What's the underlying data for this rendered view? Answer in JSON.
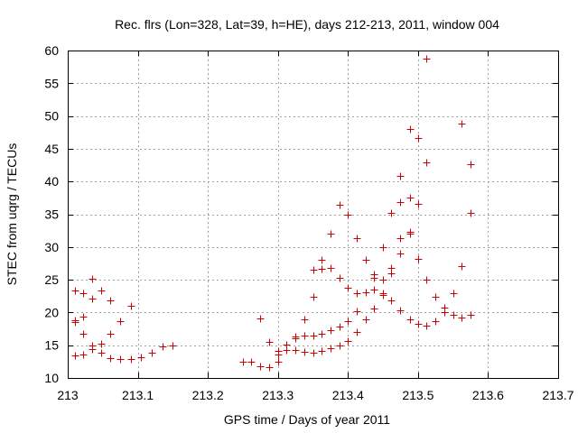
{
  "chart_data": {
    "type": "scatter",
    "title": "Rec. flrs (Lon=328, Lat=39, h=HE), days 212-213, 2011, window 004",
    "xlabel": "GPS time / Days of year 2011",
    "ylabel": "STEC from uqrg / TECUs",
    "xlim": [
      213,
      213.7
    ],
    "ylim": [
      10,
      60
    ],
    "xticks": [
      "213",
      "213.1",
      "213.2",
      "213.3",
      "213.4",
      "213.5",
      "213.6",
      "213.7"
    ],
    "yticks": [
      "10",
      "15",
      "20",
      "25",
      "30",
      "35",
      "40",
      "45",
      "50",
      "55",
      "60"
    ],
    "grid": true,
    "marker": "+",
    "color": "#d00000",
    "points": [
      [
        213.01,
        23.4
      ],
      [
        213.01,
        18.6
      ],
      [
        213.01,
        18.8
      ],
      [
        213.01,
        13.5
      ],
      [
        213.022,
        23.0
      ],
      [
        213.022,
        19.3
      ],
      [
        213.022,
        16.8
      ],
      [
        213.022,
        13.6
      ],
      [
        213.035,
        25.1
      ],
      [
        213.035,
        22.1
      ],
      [
        213.035,
        15.0
      ],
      [
        213.035,
        14.4
      ],
      [
        213.048,
        23.4
      ],
      [
        213.048,
        15.3
      ],
      [
        213.048,
        13.8
      ],
      [
        213.06,
        21.8
      ],
      [
        213.06,
        16.7
      ],
      [
        213.06,
        13.0
      ],
      [
        213.075,
        18.7
      ],
      [
        213.075,
        12.9
      ],
      [
        213.09,
        21.0
      ],
      [
        213.09,
        12.9
      ],
      [
        213.105,
        13.2
      ],
      [
        213.12,
        13.8
      ],
      [
        213.135,
        14.8
      ],
      [
        213.15,
        15.0
      ],
      [
        213.25,
        12.5
      ],
      [
        213.262,
        12.5
      ],
      [
        213.275,
        19.1
      ],
      [
        213.275,
        11.8
      ],
      [
        213.288,
        15.5
      ],
      [
        213.288,
        11.7
      ],
      [
        213.3,
        12.5
      ],
      [
        213.3,
        13.6
      ],
      [
        213.3,
        14.2
      ],
      [
        213.312,
        14.3
      ],
      [
        213.312,
        15.1
      ],
      [
        213.325,
        16.4
      ],
      [
        213.325,
        16.0
      ],
      [
        213.325,
        14.3
      ],
      [
        213.338,
        19.0
      ],
      [
        213.338,
        16.5
      ],
      [
        213.338,
        14.0
      ],
      [
        213.35,
        26.5
      ],
      [
        213.35,
        22.4
      ],
      [
        213.35,
        16.5
      ],
      [
        213.35,
        13.9
      ],
      [
        213.362,
        28.0
      ],
      [
        213.362,
        26.6
      ],
      [
        213.362,
        16.8
      ],
      [
        213.362,
        14.2
      ],
      [
        213.375,
        32.0
      ],
      [
        213.375,
        26.8
      ],
      [
        213.375,
        17.3
      ],
      [
        213.375,
        14.5
      ],
      [
        213.388,
        36.5
      ],
      [
        213.388,
        25.3
      ],
      [
        213.388,
        17.9
      ],
      [
        213.388,
        15.0
      ],
      [
        213.4,
        35.0
      ],
      [
        213.4,
        23.8
      ],
      [
        213.4,
        18.7
      ],
      [
        213.4,
        15.7
      ],
      [
        213.412,
        31.3
      ],
      [
        213.412,
        23.0
      ],
      [
        213.412,
        20.2
      ],
      [
        213.412,
        17.0
      ],
      [
        213.425,
        28.0
      ],
      [
        213.425,
        23.1
      ],
      [
        213.425,
        19.0
      ],
      [
        213.437,
        25.8
      ],
      [
        213.437,
        25.3
      ],
      [
        213.437,
        23.5
      ],
      [
        213.437,
        20.6
      ],
      [
        213.45,
        30.0
      ],
      [
        213.45,
        25.0
      ],
      [
        213.45,
        22.9
      ],
      [
        213.45,
        22.7
      ],
      [
        213.462,
        35.2
      ],
      [
        213.462,
        26.8
      ],
      [
        213.462,
        26.0
      ],
      [
        213.462,
        21.8
      ],
      [
        213.475,
        40.8
      ],
      [
        213.475,
        36.8
      ],
      [
        213.475,
        31.3
      ],
      [
        213.475,
        29.0
      ],
      [
        213.475,
        20.3
      ],
      [
        213.488,
        48.0
      ],
      [
        213.488,
        37.5
      ],
      [
        213.488,
        32.3
      ],
      [
        213.488,
        32.0
      ],
      [
        213.488,
        19.0
      ],
      [
        213.5,
        46.7
      ],
      [
        213.5,
        36.6
      ],
      [
        213.5,
        28.2
      ],
      [
        213.5,
        18.3
      ],
      [
        213.512,
        58.7
      ],
      [
        213.512,
        42.9
      ],
      [
        213.512,
        25.0
      ],
      [
        213.512,
        18.0
      ],
      [
        213.525,
        22.4
      ],
      [
        213.525,
        18.7
      ],
      [
        213.537,
        20.7
      ],
      [
        213.537,
        20.1
      ],
      [
        213.55,
        23.0
      ],
      [
        213.55,
        19.7
      ],
      [
        213.562,
        48.8
      ],
      [
        213.562,
        27.1
      ],
      [
        213.562,
        19.2
      ],
      [
        213.575,
        42.6
      ],
      [
        213.575,
        35.2
      ],
      [
        213.575,
        19.7
      ]
    ]
  }
}
